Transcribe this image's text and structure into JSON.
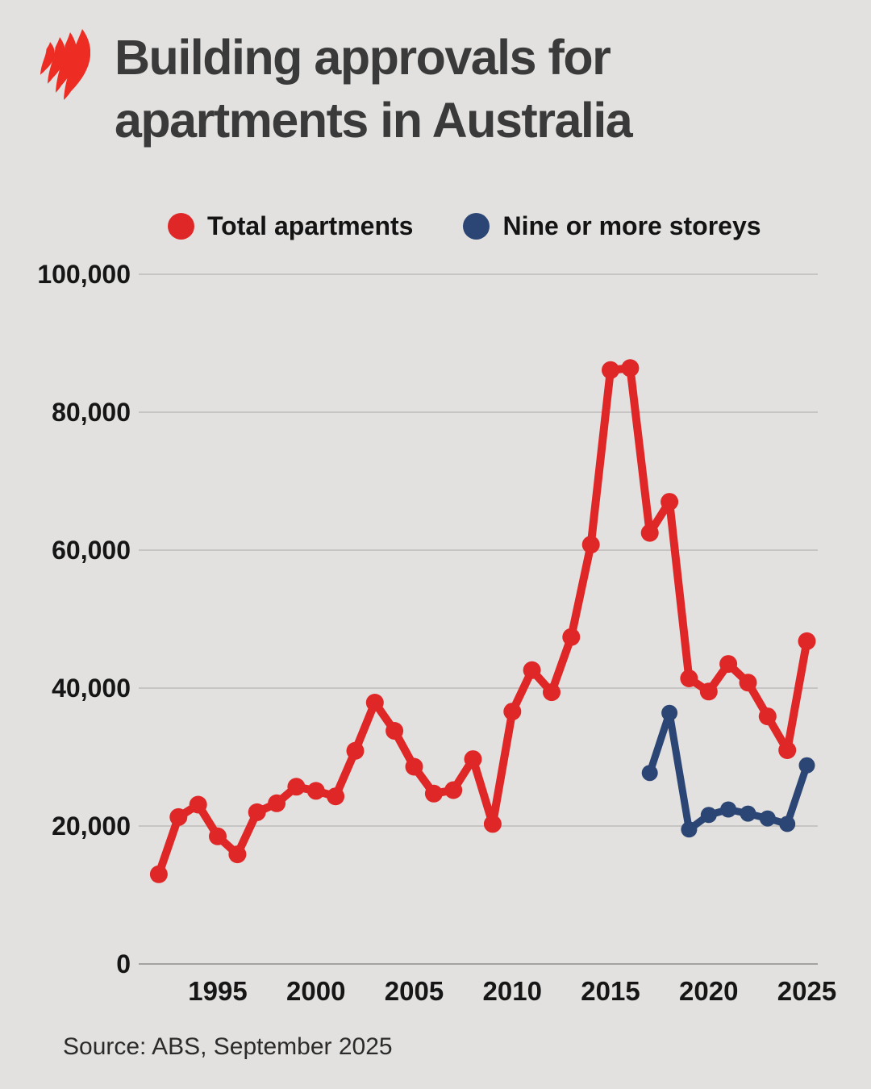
{
  "page": {
    "title_line1": "Building approvals for",
    "title_line2": "apartments in Australia",
    "source": "Source: ABS, September 2025"
  },
  "legend": {
    "items": [
      {
        "label": "Total apartments",
        "color": "#df2727"
      },
      {
        "label": "Nine or more storeys",
        "color": "#2b4574"
      }
    ]
  },
  "colors": {
    "background": "#e3e1df",
    "title_text": "#3a3a3a",
    "tick_text": "#161616",
    "gridline": "#c6c5c3",
    "zero_line": "#a3a2a0",
    "logo_red": "#ed2d24",
    "total_series": "#df2727",
    "nine_storeys_series": "#2b4574"
  },
  "chart_data": {
    "type": "line",
    "title": "Building approvals for apartments in Australia",
    "xlabel": "",
    "ylabel": "",
    "ylim": [
      0,
      100000
    ],
    "yticks": [
      0,
      20000,
      40000,
      60000,
      80000,
      100000
    ],
    "ytick_labels": [
      "0",
      "20,000",
      "40,000",
      "60,000",
      "80,000",
      "100,000"
    ],
    "xticks": [
      1995,
      2000,
      2005,
      2010,
      2015,
      2020,
      2025
    ],
    "grid": true,
    "legend_position": "top",
    "marker": "circle",
    "series": [
      {
        "name": "Total apartments",
        "color": "#df2727",
        "years": [
          1992,
          1993,
          1994,
          1995,
          1996,
          1997,
          1998,
          1999,
          2000,
          2001,
          2002,
          2003,
          2004,
          2005,
          2006,
          2007,
          2008,
          2009,
          2010,
          2011,
          2012,
          2013,
          2014,
          2015,
          2016,
          2017,
          2018,
          2019,
          2020,
          2021,
          2022,
          2023,
          2024,
          2025
        ],
        "values": [
          13000,
          21300,
          23100,
          18500,
          15900,
          22000,
          23300,
          25700,
          25100,
          24300,
          30900,
          37900,
          33800,
          28600,
          24700,
          25200,
          29700,
          20300,
          36600,
          42600,
          39400,
          47400,
          60800,
          86100,
          86400,
          62500,
          67000,
          41400,
          39500,
          43500,
          40800,
          35900,
          31000,
          46800
        ]
      },
      {
        "name": "Nine or more storeys",
        "color": "#2b4574",
        "years": [
          2017,
          2018,
          2019,
          2020,
          2021,
          2022,
          2023,
          2024,
          2025
        ],
        "values": [
          27700,
          36400,
          19500,
          21600,
          22400,
          21800,
          21100,
          20300,
          28800
        ]
      }
    ],
    "source": "ABS, September 2025"
  }
}
